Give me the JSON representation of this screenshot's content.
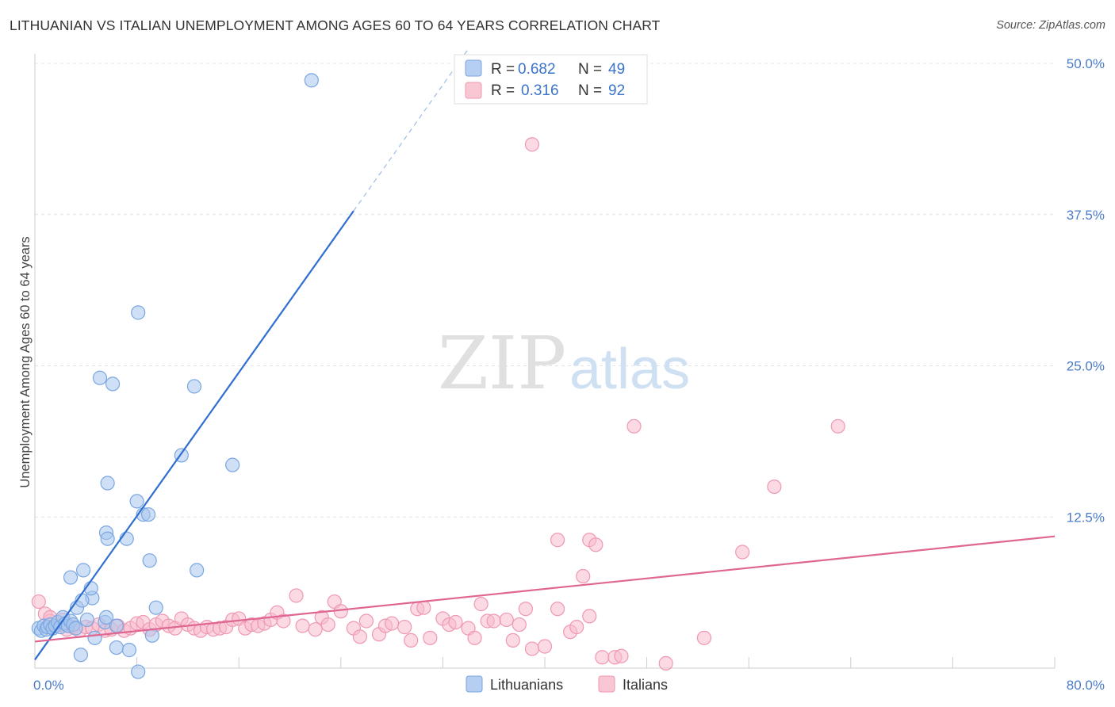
{
  "header": {
    "title": "LITHUANIAN VS ITALIAN UNEMPLOYMENT AMONG AGES 60 TO 64 YEARS CORRELATION CHART",
    "source": "Source: ZipAtlas.com"
  },
  "watermark": {
    "zip": "ZIP",
    "atlas": "atlas"
  },
  "legend": {
    "rows": [
      {
        "r_label": "R =",
        "r_value": "0.682",
        "n_label": "N =",
        "n_value": "49",
        "color": "#a8c6ee",
        "stroke": "#7aa6e0"
      },
      {
        "r_label": "R =",
        "r_value": "0.316",
        "n_label": "N =",
        "n_value": "92",
        "color": "#f8bccd",
        "stroke": "#ef98b1"
      }
    ]
  },
  "bottom_legend": {
    "items": [
      "Lithuanians",
      "Italians"
    ]
  },
  "chart_data": {
    "type": "scatter",
    "title": "LITHUANIAN VS ITALIAN UNEMPLOYMENT AMONG AGES 60 TO 64 YEARS CORRELATION CHART",
    "xlabel": "",
    "ylabel": "Unemployment Among Ages 60 to 64 years",
    "xlim": [
      0,
      80
    ],
    "ylim": [
      0,
      50
    ],
    "x_tick_labels": [
      "0.0%",
      "80.0%"
    ],
    "y_ticks": [
      12.5,
      25.0,
      37.5,
      50.0
    ],
    "y_tick_labels": [
      "12.5%",
      "25.0%",
      "37.5%",
      "50.0%"
    ],
    "grid": true,
    "series": [
      {
        "name": "Lithuanians",
        "color": "#a8c6ee",
        "stroke": "#7aa6e0",
        "line_color": "#2f6fd0",
        "r": 0.682,
        "n": 49,
        "trend": {
          "x0": 0,
          "y0": 0.7,
          "x1": 25,
          "y1": 37.8,
          "dash_to_x": 34,
          "dash_to_y": 51.2
        },
        "points": [
          [
            0.3,
            3.3
          ],
          [
            0.5,
            3.1
          ],
          [
            0.7,
            3.5
          ],
          [
            0.9,
            3.2
          ],
          [
            1.0,
            3.4
          ],
          [
            1.2,
            3.6
          ],
          [
            1.4,
            3.3
          ],
          [
            1.6,
            3.5
          ],
          [
            1.8,
            3.8
          ],
          [
            2.0,
            3.4
          ],
          [
            2.2,
            4.2
          ],
          [
            2.4,
            3.7
          ],
          [
            2.6,
            3.5
          ],
          [
            2.8,
            3.9
          ],
          [
            3.0,
            3.6
          ],
          [
            3.2,
            3.3
          ],
          [
            2.8,
            7.5
          ],
          [
            3.3,
            5.0
          ],
          [
            3.8,
            8.1
          ],
          [
            3.6,
            1.1
          ],
          [
            4.5,
            5.8
          ],
          [
            4.7,
            2.5
          ],
          [
            3.7,
            5.6
          ],
          [
            4.4,
            6.6
          ],
          [
            5.5,
            3.8
          ],
          [
            5.6,
            4.2
          ],
          [
            5.6,
            11.2
          ],
          [
            5.7,
            10.7
          ],
          [
            5.7,
            15.3
          ],
          [
            5.1,
            24.0
          ],
          [
            6.1,
            23.5
          ],
          [
            6.4,
            3.5
          ],
          [
            6.4,
            1.7
          ],
          [
            7.4,
            1.5
          ],
          [
            7.2,
            10.7
          ],
          [
            8.0,
            13.8
          ],
          [
            8.1,
            29.4
          ],
          [
            8.5,
            12.7
          ],
          [
            8.9,
            12.7
          ],
          [
            9.0,
            8.9
          ],
          [
            9.5,
            5.0
          ],
          [
            9.2,
            2.7
          ],
          [
            11.5,
            17.6
          ],
          [
            12.5,
            23.3
          ],
          [
            12.7,
            8.1
          ],
          [
            15.5,
            16.8
          ],
          [
            21.7,
            48.6
          ],
          [
            8.1,
            -0.3
          ],
          [
            4.1,
            4.0
          ]
        ]
      },
      {
        "name": "Italians",
        "color": "#f8bccd",
        "stroke": "#ef98b1",
        "line_color": "#e06692",
        "r": 0.316,
        "n": 92,
        "trend": {
          "x0": 0,
          "y0": 2.2,
          "x1": 80,
          "y1": 10.9
        },
        "points": [
          [
            0.3,
            5.5
          ],
          [
            0.8,
            4.5
          ],
          [
            1.2,
            3.9
          ],
          [
            1.6,
            3.5
          ],
          [
            2.0,
            3.6
          ],
          [
            2.5,
            3.2
          ],
          [
            3.0,
            3.4
          ],
          [
            3.5,
            3.1
          ],
          [
            4.0,
            3.4
          ],
          [
            4.5,
            3.3
          ],
          [
            5.0,
            3.6
          ],
          [
            5.5,
            3.1
          ],
          [
            6.0,
            3.2
          ],
          [
            6.5,
            3.5
          ],
          [
            7.0,
            3.1
          ],
          [
            7.5,
            3.3
          ],
          [
            8.0,
            3.7
          ],
          [
            8.5,
            3.8
          ],
          [
            9.0,
            3.2
          ],
          [
            9.5,
            3.6
          ],
          [
            10.0,
            3.9
          ],
          [
            10.5,
            3.5
          ],
          [
            11.0,
            3.3
          ],
          [
            11.5,
            4.1
          ],
          [
            12.0,
            3.6
          ],
          [
            12.5,
            3.3
          ],
          [
            13.0,
            3.1
          ],
          [
            13.5,
            3.4
          ],
          [
            14.0,
            3.2
          ],
          [
            14.5,
            3.3
          ],
          [
            15.0,
            3.4
          ],
          [
            15.5,
            4.0
          ],
          [
            16.0,
            4.1
          ],
          [
            16.5,
            3.3
          ],
          [
            17.0,
            3.6
          ],
          [
            17.5,
            3.5
          ],
          [
            18.0,
            3.7
          ],
          [
            18.5,
            4.0
          ],
          [
            19.0,
            4.6
          ],
          [
            19.5,
            3.9
          ],
          [
            20.5,
            6.0
          ],
          [
            21.0,
            3.5
          ],
          [
            22.0,
            3.2
          ],
          [
            22.5,
            4.2
          ],
          [
            23.0,
            3.6
          ],
          [
            23.5,
            5.5
          ],
          [
            24.0,
            4.7
          ],
          [
            25.0,
            3.3
          ],
          [
            25.5,
            2.6
          ],
          [
            26.0,
            3.9
          ],
          [
            27.0,
            2.8
          ],
          [
            27.5,
            3.5
          ],
          [
            28.0,
            3.7
          ],
          [
            29.0,
            3.4
          ],
          [
            29.5,
            2.3
          ],
          [
            30.0,
            4.9
          ],
          [
            30.5,
            5.0
          ],
          [
            31.0,
            2.5
          ],
          [
            32.0,
            4.1
          ],
          [
            32.5,
            3.6
          ],
          [
            33.0,
            3.8
          ],
          [
            34.0,
            3.3
          ],
          [
            34.5,
            2.5
          ],
          [
            35.0,
            5.3
          ],
          [
            35.5,
            3.9
          ],
          [
            36.0,
            3.9
          ],
          [
            37.0,
            4.0
          ],
          [
            37.5,
            2.3
          ],
          [
            38.0,
            3.6
          ],
          [
            38.5,
            4.9
          ],
          [
            39.0,
            1.6
          ],
          [
            40.0,
            1.8
          ],
          [
            41.0,
            4.9
          ],
          [
            42.0,
            3.0
          ],
          [
            42.5,
            3.4
          ],
          [
            43.0,
            7.6
          ],
          [
            43.5,
            4.3
          ],
          [
            39.0,
            43.3
          ],
          [
            41.0,
            10.6
          ],
          [
            43.5,
            10.6
          ],
          [
            44.0,
            10.2
          ],
          [
            44.5,
            0.9
          ],
          [
            45.5,
            0.9
          ],
          [
            46.0,
            1.0
          ],
          [
            47.0,
            20.0
          ],
          [
            49.5,
            0.4
          ],
          [
            52.5,
            2.5
          ],
          [
            55.5,
            9.6
          ],
          [
            58.0,
            15.0
          ],
          [
            63.0,
            20.0
          ],
          [
            1.2,
            4.2
          ],
          [
            2.2,
            4.0
          ]
        ]
      }
    ]
  }
}
